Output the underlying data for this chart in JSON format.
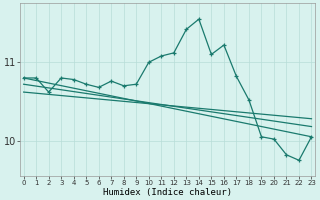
{
  "xlabel": "Humidex (Indice chaleur)",
  "background_color": "#d8f2ee",
  "line_color": "#1a7a6e",
  "grid_color": "#b8ddd8",
  "x": [
    0,
    1,
    2,
    3,
    4,
    5,
    6,
    7,
    8,
    9,
    10,
    11,
    12,
    13,
    14,
    15,
    16,
    17,
    18,
    19,
    20,
    21,
    22,
    23
  ],
  "y_main": [
    10.8,
    10.8,
    10.62,
    10.8,
    10.78,
    10.72,
    10.68,
    10.76,
    10.7,
    10.72,
    11.0,
    11.08,
    11.12,
    11.42,
    11.55,
    11.1,
    11.22,
    10.82,
    10.52,
    10.05,
    10.02,
    9.82,
    9.75,
    10.05
  ],
  "y_reg1_start": 10.8,
  "y_reg1_end": 10.05,
  "y_reg2_start": 10.72,
  "y_reg2_end": 10.18,
  "y_reg3_start": 10.62,
  "y_reg3_end": 10.28,
  "ylim": [
    9.55,
    11.75
  ],
  "yticks": [
    10,
    11
  ],
  "xlim": [
    -0.3,
    23.3
  ],
  "x_start": 0,
  "x_end": 23
}
